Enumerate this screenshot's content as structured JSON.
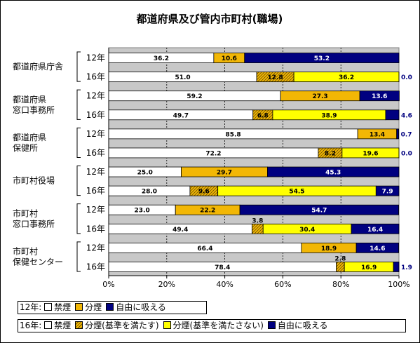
{
  "chart_data": {
    "type": "bar",
    "orientation": "horizontal",
    "stacked": true,
    "title": "都道府県及び管内市町村(職場)",
    "xlim": [
      0,
      100
    ],
    "x_ticks": [
      "0%",
      "20%",
      "40%",
      "60%",
      "80%",
      "100%"
    ],
    "grid": true,
    "groups": [
      {
        "label_lines": [
          "都道府県庁舎"
        ],
        "rows": [
          {
            "year": "12年",
            "values": [
              36.2,
              10.6,
              53.2
            ]
          },
          {
            "year": "16年",
            "values": [
              51.0,
              12.8,
              36.2,
              0.0
            ]
          }
        ]
      },
      {
        "label_lines": [
          "都道府県",
          "窓口事務所"
        ],
        "rows": [
          {
            "year": "12年",
            "values": [
              59.2,
              27.3,
              13.6
            ]
          },
          {
            "year": "16年",
            "values": [
              49.7,
              6.8,
              38.9,
              4.6
            ]
          }
        ]
      },
      {
        "label_lines": [
          "都道府県",
          "保健所"
        ],
        "rows": [
          {
            "year": "12年",
            "values": [
              85.8,
              13.4,
              0.7
            ]
          },
          {
            "year": "16年",
            "values": [
              72.2,
              8.2,
              19.6,
              0.0
            ]
          }
        ]
      },
      {
        "label_lines": [
          "市町村役場"
        ],
        "rows": [
          {
            "year": "12年",
            "values": [
              25.0,
              29.7,
              45.3
            ]
          },
          {
            "year": "16年",
            "values": [
              28.0,
              9.6,
              54.5,
              7.9
            ]
          }
        ]
      },
      {
        "label_lines": [
          "市町村",
          "窓口事務所"
        ],
        "rows": [
          {
            "year": "12年",
            "values": [
              23.0,
              22.2,
              54.7
            ]
          },
          {
            "year": "16年",
            "values": [
              49.4,
              3.8,
              30.4,
              16.4
            ]
          }
        ]
      },
      {
        "label_lines": [
          "市町村",
          "保健センター"
        ],
        "rows": [
          {
            "year": "12年",
            "values": [
              66.4,
              18.9,
              14.6
            ]
          },
          {
            "year": "16年",
            "values": [
              78.4,
              2.8,
              16.9,
              1.9
            ]
          }
        ]
      }
    ],
    "series_12": [
      {
        "name": "禁煙",
        "color": "#ffffff"
      },
      {
        "name": "分煙",
        "color": "#f2b705"
      },
      {
        "name": "自由に吸える",
        "color": "#000080"
      }
    ],
    "series_16": [
      {
        "name": "禁煙",
        "color": "#ffffff"
      },
      {
        "name": "分煙(基準を満たす)",
        "color": "#f2b705",
        "pattern": "hatch"
      },
      {
        "name": "分煙(基準を満たさない)",
        "color": "#ffff00"
      },
      {
        "name": "自由に吸える",
        "color": "#000080"
      }
    ]
  },
  "legend": {
    "row12_label": "12年:",
    "row16_label": "16年:"
  }
}
